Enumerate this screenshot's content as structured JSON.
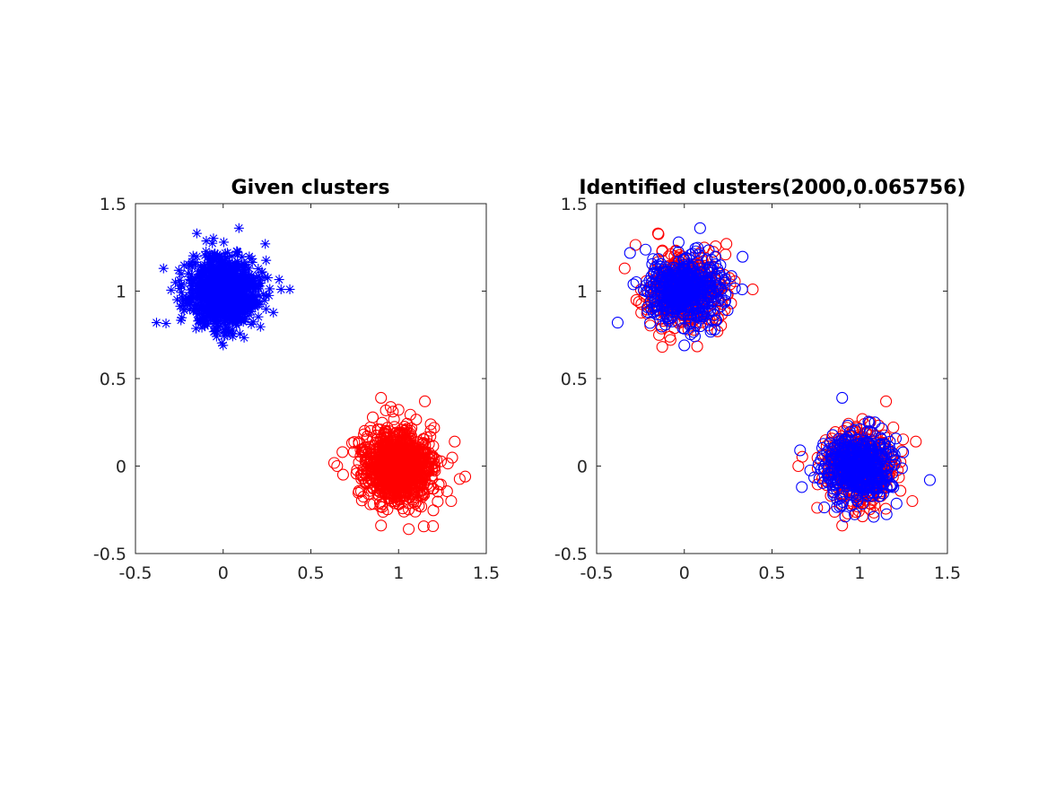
{
  "figure": {
    "background": "#ffffff"
  },
  "chart_data": [
    {
      "type": "scatter",
      "title": "Given clusters",
      "xlabel": "",
      "ylabel": "",
      "xlim": [
        -0.5,
        1.5
      ],
      "ylim": [
        -0.5,
        1.5
      ],
      "xticks": [
        -0.5,
        0,
        0.5,
        1,
        1.5
      ],
      "xtick_labels": [
        "-0.5",
        "0",
        "0.5",
        "1",
        "1.5"
      ],
      "yticks": [
        -0.5,
        0,
        0.5,
        1,
        1.5
      ],
      "ytick_labels": [
        "-0.5",
        "0",
        "0.5",
        "1",
        "1.5"
      ],
      "grid": false,
      "series": [
        {
          "marker": "asterisk",
          "color": "#0000ff",
          "center": [
            0.0,
            1.0
          ],
          "spread": 0.1,
          "count": 1000,
          "outliers": [
            [
              -0.38,
              0.82
            ],
            [
              0.38,
              1.01
            ],
            [
              0.09,
              1.36
            ],
            [
              -0.15,
              1.33
            ],
            [
              0.0,
              0.69
            ],
            [
              0.33,
              1.01
            ],
            [
              -0.34,
              1.13
            ],
            [
              0.24,
              1.27
            ]
          ]
        },
        {
          "marker": "circle",
          "color": "#ff0000",
          "center": [
            1.0,
            0.0
          ],
          "spread": 0.1,
          "count": 1000,
          "outliers": [
            [
              0.9,
              -0.34
            ],
            [
              1.38,
              -0.06
            ],
            [
              0.9,
              0.39
            ],
            [
              1.15,
              0.37
            ],
            [
              0.65,
              0.0
            ],
            [
              1.32,
              0.14
            ],
            [
              0.68,
              0.08
            ],
            [
              1.3,
              -0.2
            ]
          ]
        }
      ]
    },
    {
      "type": "scatter",
      "title": "Identified clusters(2000,0.065756)",
      "xlabel": "",
      "ylabel": "",
      "xlim": [
        -0.5,
        1.5
      ],
      "ylim": [
        -0.5,
        1.5
      ],
      "xticks": [
        -0.5,
        0,
        0.5,
        1,
        1.5
      ],
      "xtick_labels": [
        "-0.5",
        "0",
        "0.5",
        "1",
        "1.5"
      ],
      "yticks": [
        -0.5,
        0,
        0.5,
        1,
        1.5
      ],
      "ytick_labels": [
        "-0.5",
        "0",
        "0.5",
        "1",
        "1.5"
      ],
      "grid": false,
      "series": [
        {
          "marker": "circle",
          "color": "#ff0000",
          "center": [
            0.0,
            1.0
          ],
          "spread": 0.1,
          "count": 500,
          "outliers": [
            [
              0.39,
              1.01
            ],
            [
              -0.15,
              1.33
            ],
            [
              0.24,
              1.27
            ],
            [
              -0.34,
              1.13
            ]
          ]
        },
        {
          "marker": "circle",
          "color": "#0000ff",
          "center": [
            0.0,
            1.0
          ],
          "spread": 0.1,
          "count": 500,
          "outliers": [
            [
              -0.38,
              0.82
            ],
            [
              0.09,
              1.36
            ],
            [
              0.0,
              0.69
            ],
            [
              0.33,
              1.01
            ]
          ]
        },
        {
          "marker": "circle",
          "color": "#ff0000",
          "center": [
            1.0,
            0.0
          ],
          "spread": 0.1,
          "count": 500,
          "outliers": [
            [
              0.9,
              -0.34
            ],
            [
              1.32,
              0.14
            ],
            [
              1.15,
              0.37
            ],
            [
              0.65,
              0.0
            ],
            [
              1.3,
              -0.2
            ]
          ]
        },
        {
          "marker": "circle",
          "color": "#0000ff",
          "center": [
            1.0,
            0.0
          ],
          "spread": 0.1,
          "count": 500,
          "outliers": [
            [
              1.4,
              -0.08
            ],
            [
              0.9,
              0.39
            ],
            [
              0.66,
              0.09
            ],
            [
              0.67,
              -0.12
            ],
            [
              1.08,
              -0.29
            ]
          ]
        }
      ]
    }
  ]
}
